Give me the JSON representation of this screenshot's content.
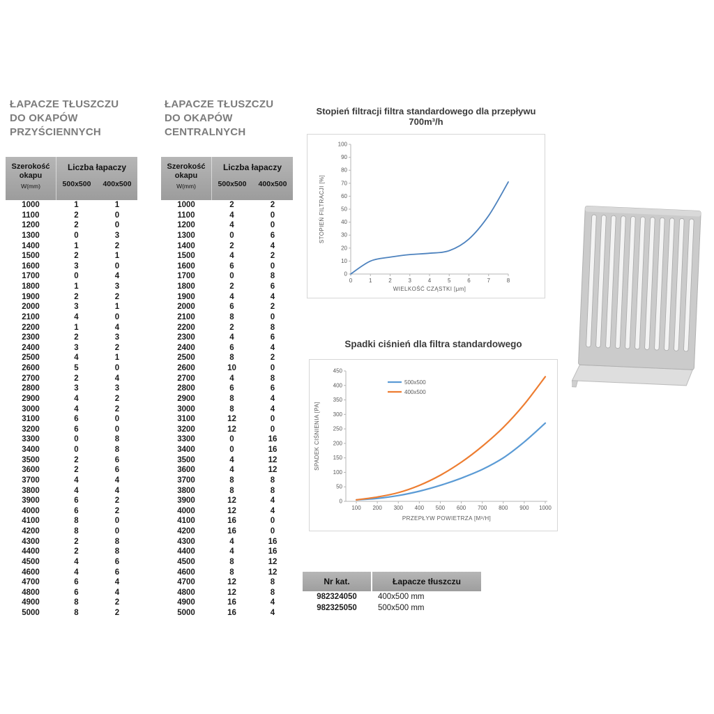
{
  "wall_table": {
    "title_lines": [
      "ŁAPACZE TŁUSZCZU",
      "DO OKAPÓW",
      "PRZYŚCIENNYCH"
    ],
    "header": {
      "width_line1": "Szerokość",
      "width_line2": "okapu",
      "width_unit": "W(mm)",
      "group_label": "Liczba łapaczy",
      "col_a": "500x500",
      "col_b": "400x500"
    },
    "rows": [
      [
        1000,
        1,
        1
      ],
      [
        1100,
        2,
        0
      ],
      [
        1200,
        2,
        0
      ],
      [
        1300,
        0,
        3
      ],
      [
        1400,
        1,
        2
      ],
      [
        1500,
        2,
        1
      ],
      [
        1600,
        3,
        0
      ],
      [
        1700,
        0,
        4
      ],
      [
        1800,
        1,
        3
      ],
      [
        1900,
        2,
        2
      ],
      [
        2000,
        3,
        1
      ],
      [
        2100,
        4,
        0
      ],
      [
        2200,
        1,
        4
      ],
      [
        2300,
        2,
        3
      ],
      [
        2400,
        3,
        2
      ],
      [
        2500,
        4,
        1
      ],
      [
        2600,
        5,
        0
      ],
      [
        2700,
        2,
        4
      ],
      [
        2800,
        3,
        3
      ],
      [
        2900,
        4,
        2
      ],
      [
        3000,
        4,
        2
      ],
      [
        3100,
        6,
        0
      ],
      [
        3200,
        6,
        0
      ],
      [
        3300,
        0,
        8
      ],
      [
        3400,
        0,
        8
      ],
      [
        3500,
        2,
        6
      ],
      [
        3600,
        2,
        6
      ],
      [
        3700,
        4,
        4
      ],
      [
        3800,
        4,
        4
      ],
      [
        3900,
        6,
        2
      ],
      [
        4000,
        6,
        2
      ],
      [
        4100,
        8,
        0
      ],
      [
        4200,
        8,
        0
      ],
      [
        4300,
        2,
        8
      ],
      [
        4400,
        2,
        8
      ],
      [
        4500,
        4,
        6
      ],
      [
        4600,
        4,
        6
      ],
      [
        4700,
        6,
        4
      ],
      [
        4800,
        6,
        4
      ],
      [
        4900,
        8,
        2
      ],
      [
        5000,
        8,
        2
      ]
    ]
  },
  "central_table": {
    "title_lines": [
      "ŁAPACZE TŁUSZCZU",
      "DO OKAPÓW",
      "CENTRALNYCH"
    ],
    "header": {
      "width_line1": "Szerokość",
      "width_line2": "okapu",
      "width_unit": "W(mm)",
      "group_label": "Liczba łapaczy",
      "col_a": "500x500",
      "col_b": "400x500"
    },
    "rows": [
      [
        1000,
        2,
        2
      ],
      [
        1100,
        4,
        0
      ],
      [
        1200,
        4,
        0
      ],
      [
        1300,
        0,
        6
      ],
      [
        1400,
        2,
        4
      ],
      [
        1500,
        4,
        2
      ],
      [
        1600,
        6,
        0
      ],
      [
        1700,
        0,
        8
      ],
      [
        1800,
        2,
        6
      ],
      [
        1900,
        4,
        4
      ],
      [
        2000,
        6,
        2
      ],
      [
        2100,
        8,
        0
      ],
      [
        2200,
        2,
        8
      ],
      [
        2300,
        4,
        6
      ],
      [
        2400,
        6,
        4
      ],
      [
        2500,
        8,
        2
      ],
      [
        2600,
        10,
        0
      ],
      [
        2700,
        4,
        8
      ],
      [
        2800,
        6,
        6
      ],
      [
        2900,
        8,
        4
      ],
      [
        3000,
        8,
        4
      ],
      [
        3100,
        12,
        0
      ],
      [
        3200,
        12,
        0
      ],
      [
        3300,
        0,
        16
      ],
      [
        3400,
        0,
        16
      ],
      [
        3500,
        4,
        12
      ],
      [
        3600,
        4,
        12
      ],
      [
        3700,
        8,
        8
      ],
      [
        3800,
        8,
        8
      ],
      [
        3900,
        12,
        4
      ],
      [
        4000,
        12,
        4
      ],
      [
        4100,
        16,
        0
      ],
      [
        4200,
        16,
        0
      ],
      [
        4300,
        4,
        16
      ],
      [
        4400,
        4,
        16
      ],
      [
        4500,
        8,
        12
      ],
      [
        4600,
        8,
        12
      ],
      [
        4700,
        12,
        8
      ],
      [
        4800,
        12,
        8
      ],
      [
        4900,
        16,
        4
      ],
      [
        5000,
        16,
        4
      ]
    ]
  },
  "catalog_table": {
    "headers": [
      "Nr kat.",
      "Łapacze tłuszczu"
    ],
    "rows": [
      [
        "982324050",
        "400x500 mm"
      ],
      [
        "982325050",
        "500x500 mm"
      ]
    ]
  },
  "chart_data": [
    {
      "type": "line",
      "title": "Stopień filtracji filtra standardowego dla przepływu 700m³/h",
      "xlabel": "WIELKOŚĆ CZĄSTKI [μm]",
      "ylabel": "STOPIEŃ FILTRACJI [%]",
      "x": [
        0,
        1,
        2,
        3,
        4,
        5,
        6,
        7,
        8
      ],
      "series": [
        {
          "color": "#4d82be",
          "values": [
            0,
            10,
            13,
            15,
            16,
            18,
            27,
            45,
            71
          ]
        }
      ],
      "xlim": [
        0,
        8
      ],
      "ylim": [
        0,
        100
      ],
      "xticks": [
        0,
        1,
        2,
        3,
        4,
        5,
        6,
        7,
        8
      ],
      "yticks": [
        0,
        10,
        20,
        30,
        40,
        50,
        60,
        70,
        80,
        90,
        100
      ],
      "grid": false,
      "legend_position": "none"
    },
    {
      "type": "line",
      "title": "Spadki ciśnień dla filtra standardowego",
      "xlabel": "PRZEPŁYW POWIETRZA [M³/H]",
      "ylabel": "SPADEK CIŚNIENIA [PA]",
      "x": [
        100,
        200,
        300,
        400,
        500,
        600,
        700,
        800,
        900,
        1000
      ],
      "series": [
        {
          "name": "500x500",
          "color": "#5b9bd5",
          "values": [
            5,
            10,
            20,
            35,
            55,
            80,
            110,
            150,
            205,
            270
          ]
        },
        {
          "name": "400x500",
          "color": "#ed7d31",
          "values": [
            5,
            15,
            30,
            55,
            90,
            135,
            190,
            255,
            335,
            430
          ]
        }
      ],
      "xlim": [
        50,
        1010
      ],
      "ylim": [
        0,
        450
      ],
      "xticks": [
        100,
        200,
        300,
        400,
        500,
        600,
        700,
        800,
        900,
        1000
      ],
      "yticks": [
        0,
        50,
        100,
        150,
        200,
        250,
        300,
        350,
        400,
        450
      ],
      "grid": false,
      "legend_position": "top-left-inside"
    }
  ]
}
